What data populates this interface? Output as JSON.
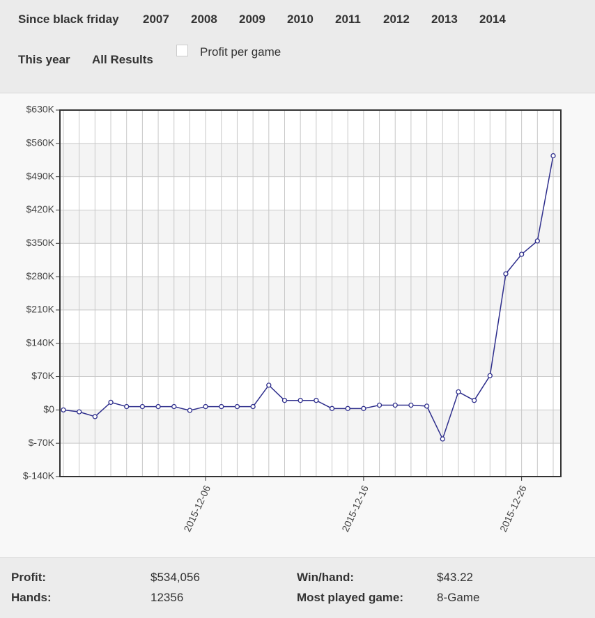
{
  "filters": [
    "Since black friday",
    "2007",
    "2008",
    "2009",
    "2010",
    "2011",
    "2012",
    "2013",
    "2014",
    "This year",
    "All Results"
  ],
  "checkbox_label": "Profit per game",
  "chart_data": {
    "type": "line",
    "categories": [
      null,
      null,
      null,
      null,
      null,
      null,
      null,
      null,
      null,
      "2015-12-06",
      null,
      null,
      null,
      null,
      null,
      null,
      null,
      null,
      null,
      "2015-12-16",
      null,
      null,
      null,
      null,
      null,
      null,
      null,
      null,
      null,
      "2015-12-26",
      null,
      null
    ],
    "values": [
      0,
      -4000,
      -14000,
      16000,
      7000,
      7000,
      7000,
      7000,
      -1000,
      7000,
      7000,
      7000,
      7000,
      52000,
      20000,
      20000,
      20000,
      3000,
      3000,
      3000,
      10000,
      10000,
      10000,
      8000,
      -61000,
      38000,
      20000,
      72000,
      286000,
      327000,
      355000,
      534056
    ],
    "color": "#2e2e8c",
    "ylim": [
      -140000,
      630000
    ],
    "yticks": [
      {
        "value": -140000,
        "label": "$-140K"
      },
      {
        "value": -70000,
        "label": "$-70K"
      },
      {
        "value": 0,
        "label": "$0"
      },
      {
        "value": 70000,
        "label": "$70K"
      },
      {
        "value": 140000,
        "label": "$140K"
      },
      {
        "value": 210000,
        "label": "$210K"
      },
      {
        "value": 280000,
        "label": "$280K"
      },
      {
        "value": 350000,
        "label": "$350K"
      },
      {
        "value": 420000,
        "label": "$420K"
      },
      {
        "value": 490000,
        "label": "$490K"
      },
      {
        "value": 560000,
        "label": "$560K"
      },
      {
        "value": 630000,
        "label": "$630K"
      }
    ],
    "grid": true
  },
  "stats": [
    {
      "label": "Profit:",
      "value": "$534,056"
    },
    {
      "label": "Win/hand:",
      "value": "$43.22"
    },
    {
      "label": "Hands:",
      "value": "12356"
    },
    {
      "label": "Most played game:",
      "value": "8-Game"
    }
  ]
}
